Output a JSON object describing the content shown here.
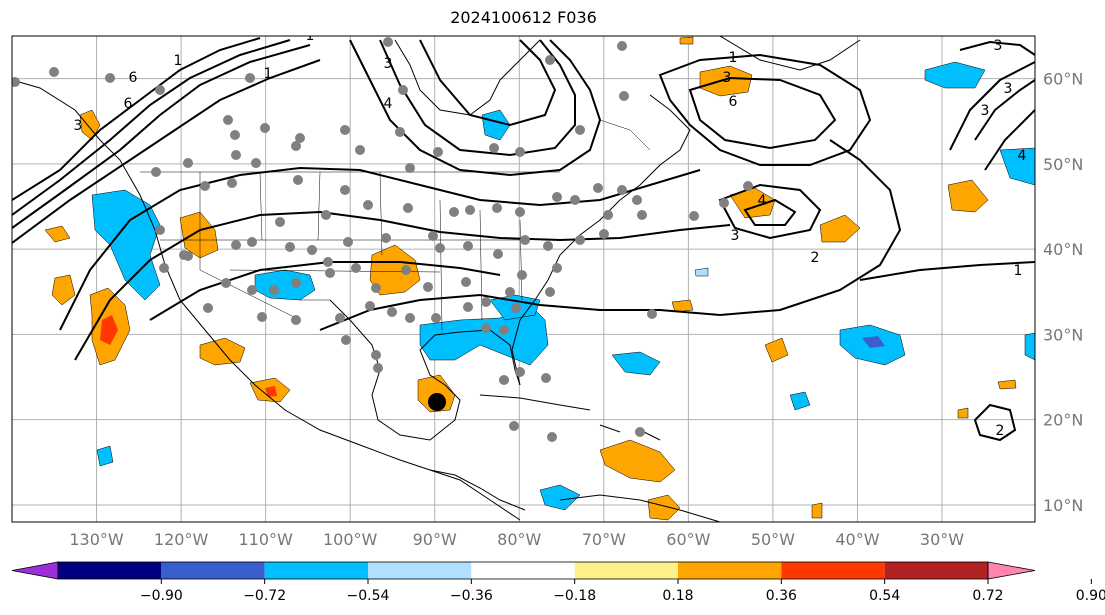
{
  "title": "2024100612 F036",
  "map": {
    "lon_range": [
      -140,
      -19
    ],
    "lat_range": [
      8,
      65
    ],
    "gridlines": true,
    "lon_labels": [
      "130°W",
      "120°W",
      "110°W",
      "100°W",
      "90°W",
      "80°W",
      "70°W",
      "60°W",
      "50°W",
      "40°W",
      "30°W"
    ],
    "lat_labels": [
      "60°N",
      "50°N",
      "40°N",
      "30°N",
      "20°N",
      "10°N"
    ],
    "contour_labels": [
      "1",
      "3",
      "6",
      "4",
      "2",
      "3",
      "4",
      "1",
      "6",
      "3",
      "4",
      "3",
      "3",
      "1",
      "2",
      "1",
      "3",
      "6",
      "3",
      "1"
    ],
    "colors": {
      "land_outline": "#000000",
      "grid": "#b0b0b0",
      "station_dot": "#808080",
      "storm_marker": "#000000"
    }
  },
  "colorbar": {
    "ticks": [
      "−0.90",
      "−0.72",
      "−0.54",
      "−0.36",
      "−0.18",
      "0.18",
      "0.36",
      "0.54",
      "0.72",
      "0.90"
    ],
    "colors": [
      "#9b30d9",
      "#000080",
      "#3a5fcd",
      "#00bfff",
      "#b0e0ff",
      "#ffffff",
      "#fff08a",
      "#ffa500",
      "#ff3800",
      "#b22222",
      "#ff85b0"
    ],
    "extend": "both"
  }
}
